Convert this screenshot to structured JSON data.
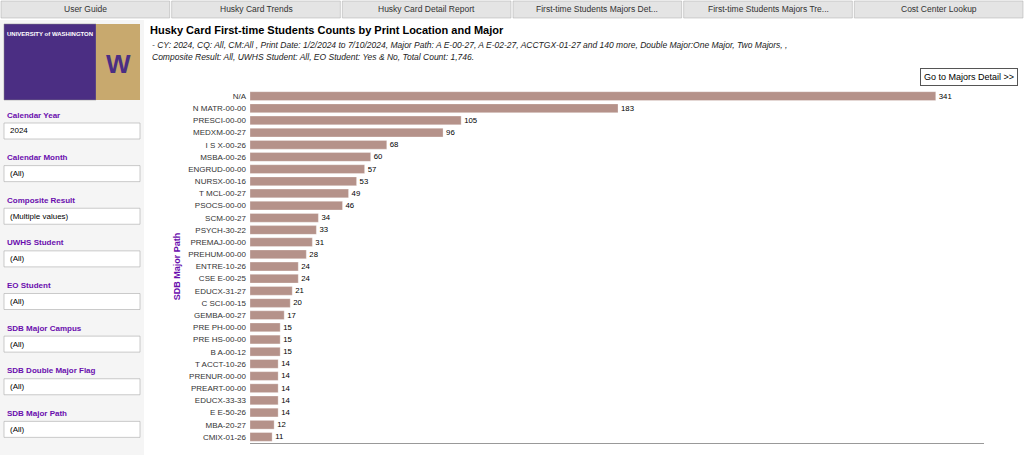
{
  "chart_data": {
    "type": "bar",
    "orientation": "horizontal",
    "title": "Husky Card First-time Students Counts by Print Location and Major",
    "subtitle": "- CY: 2024, CQ: All, CM:All , Print Date: 1/2/2024 to 7/10/2024, Major Path: A E-00-27, A E-02-27, ACCTGX-01-27 and 140 more, Double Major:One Major, Two Majors, , Composite Result: All, UWHS Student: All, EO Student: Yes & No, Total Count: 1,746.",
    "ylabel": "SDB Major Path",
    "annotations": [
      [
        "User Guide",
        "Husky Card Trends",
        "Husky Card Detail Report",
        "First-time Students Majors Det...",
        "First-time Students Majors Tre...",
        "Cost Center Lookup"
      ],
      [
        "UNIVERSITY of WASHINGTON",
        "W"
      ],
      [
        "Calendar Year",
        "2024",
        "Calendar Month",
        "(All)",
        "Composite Result",
        "(Multiple values)",
        "UWHS Student",
        "(All)",
        "EO Student",
        "(All)",
        "SDB Major Campus",
        "(All)",
        "SDB Double Major Flag",
        "(All)",
        "SDB Major Path",
        "(All)"
      ],
      [
        "Go to Majors Detail >>"
      ]
    ],
    "categories": [
      "N/A",
      "N MATR-00-00",
      "PRESCI-00-00",
      "MEDXM-00-27",
      "I S X-00-26",
      "MSBA-00-26",
      "ENGRUD-00-00",
      "NURSX-00-16",
      "T MCL-00-27",
      "PSOCS-00-00",
      "SCM-00-27",
      "PSYCH-30-22",
      "PREMAJ-00-00",
      "PREHUM-00-00",
      "ENTRE-10-26",
      "CSE E-00-25",
      "EDUCX-31-27",
      "C SCI-00-15",
      "GEMBA-00-27",
      "PRE PH-00-00",
      "PRE HS-00-00",
      "B A-00-12",
      "T ACCT-10-26",
      "PRENUR-00-00",
      "PREART-00-00",
      "EDUCX-33-33",
      "E E-50-26",
      "MBA-20-27",
      "CMIX-01-26"
    ],
    "values": [
      341,
      183,
      105,
      96,
      68,
      60,
      57,
      53,
      49,
      46,
      34,
      33,
      31,
      28,
      24,
      24,
      21,
      20,
      17,
      15,
      15,
      15,
      14,
      14,
      14,
      14,
      14,
      12,
      11
    ],
    "color": "#b5928a",
    "xlim": [
      0,
      365
    ],
    "data_labels": true,
    "tick_labels": "y",
    "grid": false
  }
}
